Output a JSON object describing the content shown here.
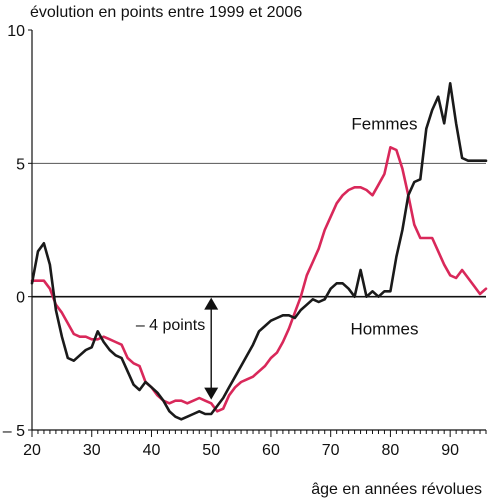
{
  "chart_data": {
    "type": "line",
    "title": "évolution en points entre 1999 et 2006",
    "xlabel": "âge en années révolues",
    "ylabel": "",
    "xlim": [
      20,
      96
    ],
    "ylim": [
      -5,
      10
    ],
    "xticks": [
      20,
      30,
      40,
      50,
      60,
      70,
      80,
      90
    ],
    "yticks": [
      -5,
      0,
      5,
      10
    ],
    "ytick_labels": [
      "– 5",
      "0",
      "5",
      "10"
    ],
    "gridlines_y": [
      5
    ],
    "zero_line": true,
    "legend": "inline labels on curves",
    "series": [
      {
        "name": "Femmes",
        "color": "#d9285a",
        "x": [
          20,
          21,
          22,
          23,
          24,
          25,
          26,
          27,
          28,
          29,
          30,
          31,
          32,
          33,
          34,
          35,
          36,
          37,
          38,
          39,
          40,
          41,
          42,
          43,
          44,
          45,
          46,
          47,
          48,
          49,
          50,
          51,
          52,
          53,
          54,
          55,
          56,
          57,
          58,
          59,
          60,
          61,
          62,
          63,
          64,
          65,
          66,
          67,
          68,
          69,
          70,
          71,
          72,
          73,
          74,
          75,
          76,
          77,
          78,
          79,
          80,
          81,
          82,
          83,
          84,
          85,
          86,
          87,
          88,
          89,
          90,
          91,
          92,
          93,
          94,
          95,
          96
        ],
        "values": [
          0.6,
          0.6,
          0.6,
          0.3,
          -0.3,
          -0.6,
          -1.0,
          -1.4,
          -1.5,
          -1.5,
          -1.6,
          -1.6,
          -1.5,
          -1.6,
          -1.7,
          -1.8,
          -2.3,
          -2.5,
          -2.6,
          -3.2,
          -3.4,
          -3.7,
          -3.9,
          -4.0,
          -3.9,
          -3.9,
          -4.0,
          -3.9,
          -3.8,
          -3.9,
          -4.0,
          -4.3,
          -4.2,
          -3.7,
          -3.4,
          -3.2,
          -3.1,
          -3.0,
          -2.8,
          -2.6,
          -2.3,
          -2.1,
          -1.7,
          -1.2,
          -0.6,
          0.0,
          0.8,
          1.3,
          1.8,
          2.5,
          3.0,
          3.5,
          3.8,
          4.0,
          4.1,
          4.1,
          4.0,
          3.8,
          4.2,
          4.6,
          5.6,
          5.5,
          4.8,
          3.8,
          2.7,
          2.2,
          2.2,
          2.2,
          1.7,
          1.2,
          0.8,
          0.7,
          1.0,
          0.7,
          0.4,
          0.1,
          0.3
        ]
      },
      {
        "name": "Hommes",
        "color": "#1a1a1a",
        "x": [
          20,
          21,
          22,
          23,
          24,
          25,
          26,
          27,
          28,
          29,
          30,
          31,
          32,
          33,
          34,
          35,
          36,
          37,
          38,
          39,
          40,
          41,
          42,
          43,
          44,
          45,
          46,
          47,
          48,
          49,
          50,
          51,
          52,
          53,
          54,
          55,
          56,
          57,
          58,
          59,
          60,
          61,
          62,
          63,
          64,
          65,
          66,
          67,
          68,
          69,
          70,
          71,
          72,
          73,
          74,
          75,
          76,
          77,
          78,
          79,
          80,
          81,
          82,
          83,
          84,
          85,
          86,
          87,
          88,
          89,
          90,
          91,
          92,
          93,
          94,
          95,
          96
        ],
        "values": [
          0.5,
          1.7,
          2.0,
          1.2,
          -0.5,
          -1.5,
          -2.3,
          -2.4,
          -2.2,
          -2.0,
          -1.9,
          -1.3,
          -1.7,
          -2.0,
          -2.2,
          -2.3,
          -2.8,
          -3.3,
          -3.5,
          -3.2,
          -3.4,
          -3.6,
          -3.9,
          -4.3,
          -4.5,
          -4.6,
          -4.5,
          -4.4,
          -4.3,
          -4.4,
          -4.4,
          -4.1,
          -3.8,
          -3.4,
          -3.0,
          -2.6,
          -2.2,
          -1.8,
          -1.3,
          -1.1,
          -0.9,
          -0.8,
          -0.7,
          -0.7,
          -0.8,
          -0.5,
          -0.3,
          -0.1,
          -0.2,
          -0.1,
          0.3,
          0.5,
          0.5,
          0.3,
          0.0,
          1.0,
          0.0,
          0.2,
          0.0,
          0.2,
          0.2,
          1.5,
          2.5,
          3.8,
          4.3,
          4.4,
          6.3,
          7.0,
          7.5,
          6.5,
          8.0,
          6.5,
          5.2,
          5.1,
          5.1,
          5.1,
          5.1
        ]
      }
    ],
    "annotations": [
      {
        "text": "– 4 points",
        "type": "double-arrow",
        "x": 50,
        "from": 0,
        "to": -3.9
      }
    ]
  }
}
